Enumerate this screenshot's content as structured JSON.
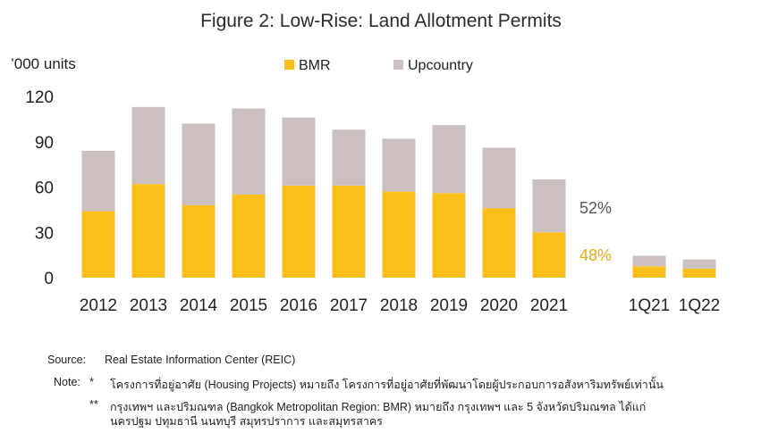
{
  "chart_data": {
    "type": "bar",
    "stacked": true,
    "title": "Figure 2: Low-Rise: Land Allotment Permits",
    "ylabel": "’000 units",
    "xlabel": "",
    "ylim": [
      0,
      120
    ],
    "yticks": [
      0,
      30,
      60,
      90,
      120
    ],
    "grid": false,
    "legend_position": "top-center",
    "categories": [
      "2012",
      "2013",
      "2014",
      "2015",
      "2016",
      "2017",
      "2018",
      "2019",
      "2020",
      "2021",
      "1Q21",
      "1Q22"
    ],
    "series": [
      {
        "name": "BMR",
        "color": "#FBBF1C",
        "values": [
          44,
          62,
          48,
          55,
          61,
          61,
          57,
          56,
          46,
          30,
          7.5,
          6
        ]
      },
      {
        "name": "Upcountry",
        "color": "#CCBFC0",
        "values": [
          40,
          51,
          54,
          57,
          45,
          37,
          35,
          45,
          40,
          35,
          7,
          6
        ]
      }
    ],
    "annotations": [
      {
        "text": "52%",
        "color": "#555555"
      },
      {
        "text": "48%",
        "color": "#E5A912"
      }
    ]
  },
  "notes": {
    "source_label": "Source:",
    "source_text": "Real Estate Information Center (REIC)",
    "note_label": "Note:",
    "note1_marker": "*",
    "note1_text": "โครงการที่อยู่อาศัย (Housing Projects) หมายถึง โครงการที่อยู่อาศัยที่พัฒนาโดยผู้ประกอบการอสังหาริมทรัพย์เท่านั้น",
    "note2_marker": "**",
    "note2_line1": "กรุงเทพฯ และปริมณฑล (Bangkok Metropolitan Region: BMR) หมายถึง กรุงเทพฯ และ 5 จังหวัดปริมณฑล ได้แก่",
    "note2_line2": "นครปฐม ปทุมธานี นนทบุรี สมุทรปราการ และสมุทรสาคร"
  }
}
